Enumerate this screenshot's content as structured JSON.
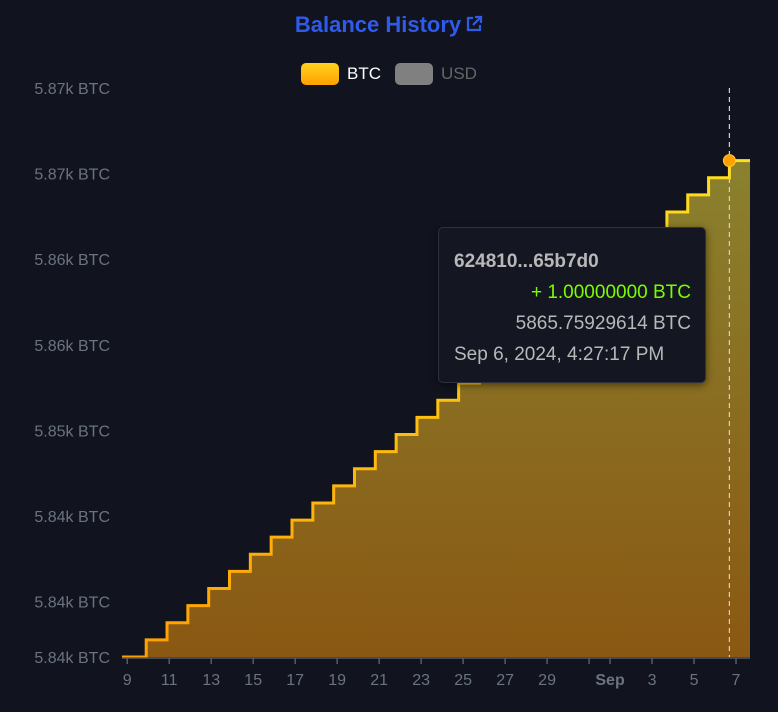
{
  "header": {
    "title": "Balance History",
    "link_icon": "external-link-icon",
    "title_color": "#2f5bea"
  },
  "legend": [
    {
      "label": "BTC",
      "color": "#ffb300",
      "active": true
    },
    {
      "label": "USD",
      "color": "#808080",
      "active": false
    }
  ],
  "tooltip": {
    "tx": "624810...65b7d0",
    "change": "+ 1.00000000 BTC",
    "change_color": "#7cfc00",
    "balance": "5865.75929614 BTC",
    "time": "Sep 6, 2024, 4:27:17 PM"
  },
  "chart_data": {
    "type": "area",
    "interpolation": "step-after",
    "title": "",
    "xlabel": "",
    "ylabel": "",
    "xlim": [
      "2024-08-08T18:00",
      "2024-09-07T16:00"
    ],
    "ylim": [
      5836.76,
      5870
    ],
    "grid": false,
    "legend_position": "top",
    "y_ticks": [
      {
        "value": 5840,
        "label": "5.84k BTC"
      },
      {
        "value": 5845,
        "label": "5.84k BTC"
      },
      {
        "value": 5850,
        "label": "5.85k BTC"
      },
      {
        "value": 5855,
        "label": "5.86k BTC"
      },
      {
        "value": 5860,
        "label": "5.86k BTC"
      },
      {
        "value": 5865,
        "label": "5.87k BTC"
      },
      {
        "value": 5870,
        "label": "5.87k BTC"
      }
    ],
    "y_min_label": {
      "value": 5836.76,
      "label": "5.84k BTC"
    },
    "x_ticks": [
      {
        "date": "2024-08-09",
        "label": "9"
      },
      {
        "date": "2024-08-11",
        "label": "11"
      },
      {
        "date": "2024-08-13",
        "label": "13"
      },
      {
        "date": "2024-08-15",
        "label": "15"
      },
      {
        "date": "2024-08-17",
        "label": "17"
      },
      {
        "date": "2024-08-19",
        "label": "19"
      },
      {
        "date": "2024-08-21",
        "label": "21"
      },
      {
        "date": "2024-08-23",
        "label": "23"
      },
      {
        "date": "2024-08-25",
        "label": "25"
      },
      {
        "date": "2024-08-27",
        "label": "27"
      },
      {
        "date": "2024-08-29",
        "label": "29"
      },
      {
        "date": "2024-08-31",
        "label": ""
      },
      {
        "date": "2024-09-01",
        "label": "Sep",
        "bold": true
      },
      {
        "date": "2024-09-03",
        "label": "3"
      },
      {
        "date": "2024-09-05",
        "label": "5"
      },
      {
        "date": "2024-09-07",
        "label": "7"
      }
    ],
    "hover": {
      "date": "2024-09-06T16:27:17",
      "value": 5865.75929614
    },
    "series": [
      {
        "color_top": "#ffd21f",
        "color_bottom": "#ffa000",
        "points": [
          [
            "2024-08-08T18:00",
            5836.75929614
          ],
          [
            "2024-08-09T21:40",
            5837.75929614
          ],
          [
            "2024-08-10T21:29",
            5838.75929614
          ],
          [
            "2024-08-11T21:18",
            5839.75929614
          ],
          [
            "2024-08-12T21:06",
            5840.75929614
          ],
          [
            "2024-08-13T20:55",
            5841.75929614
          ],
          [
            "2024-08-14T20:44",
            5842.75929614
          ],
          [
            "2024-08-15T20:33",
            5843.75929614
          ],
          [
            "2024-08-16T20:22",
            5844.75929614
          ],
          [
            "2024-08-17T20:11",
            5845.75929614
          ],
          [
            "2024-08-18T19:59",
            5846.75929614
          ],
          [
            "2024-08-19T19:48",
            5847.75929614
          ],
          [
            "2024-08-20T19:37",
            5848.75929614
          ],
          [
            "2024-08-21T19:26",
            5849.75929614
          ],
          [
            "2024-08-22T19:15",
            5850.75929614
          ],
          [
            "2024-08-23T19:03",
            5851.75929614
          ],
          [
            "2024-08-24T18:52",
            5852.75929614
          ],
          [
            "2024-08-25T18:41",
            5853.75929614
          ],
          [
            "2024-08-26T18:30",
            5854.75929614
          ],
          [
            "2024-08-27T18:19",
            5855.75929614
          ],
          [
            "2024-08-28T18:08",
            5856.75929614
          ],
          [
            "2024-08-29T17:56",
            5857.75929614
          ],
          [
            "2024-08-30T17:45",
            5858.75929614
          ],
          [
            "2024-08-31T17:34",
            5859.75929614
          ],
          [
            "2024-09-01T17:23",
            5860.75929614
          ],
          [
            "2024-09-02T17:12",
            5861.75929614
          ],
          [
            "2024-09-03T17:00",
            5862.75929614
          ],
          [
            "2024-09-04T16:49",
            5863.75929614
          ],
          [
            "2024-09-05T16:38",
            5864.75929614
          ],
          [
            "2024-09-06T16:27",
            5865.75929614
          ]
        ]
      }
    ]
  }
}
